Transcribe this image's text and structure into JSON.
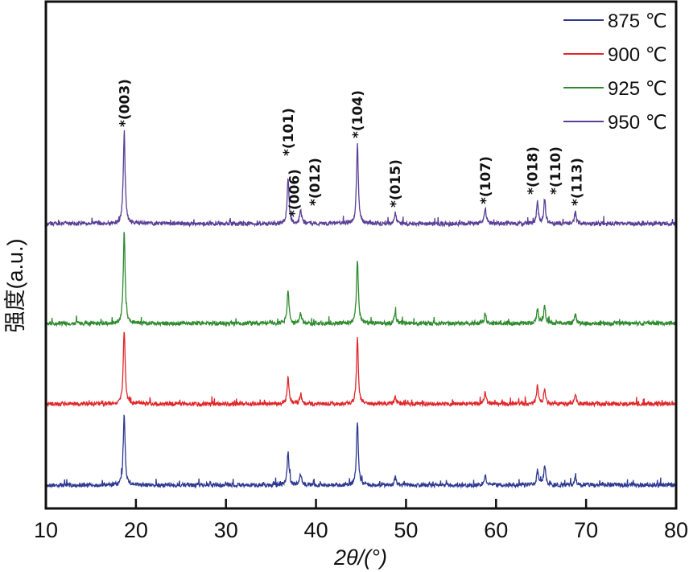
{
  "chart_data": {
    "type": "line",
    "xlabel": "2θ/(°)",
    "ylabel": "强度(a.u.)",
    "xlim": [
      10,
      80
    ],
    "xticks": [
      "10",
      "20",
      "30",
      "40",
      "50",
      "60",
      "70",
      "80"
    ],
    "grid": false,
    "legend_placement": "top-right",
    "series": [
      {
        "name": "875 ℃",
        "color": "#2e3a92",
        "offset": 0,
        "peaks": [
          [
            18.7,
            88
          ],
          [
            36.9,
            42
          ],
          [
            38.3,
            14
          ],
          [
            44.6,
            79
          ],
          [
            48.8,
            10
          ],
          [
            58.8,
            12
          ],
          [
            64.6,
            18
          ],
          [
            65.4,
            26
          ],
          [
            68.8,
            10
          ]
        ]
      },
      {
        "name": "900 ℃",
        "color": "#e0262a",
        "offset": 101,
        "peaks": [
          [
            18.7,
            93
          ],
          [
            36.9,
            34
          ],
          [
            38.3,
            12
          ],
          [
            44.6,
            82
          ],
          [
            48.8,
            8
          ],
          [
            58.8,
            14
          ],
          [
            64.6,
            22
          ],
          [
            65.4,
            18
          ],
          [
            68.8,
            12
          ]
        ]
      },
      {
        "name": "925 ℃",
        "color": "#2e8b2e",
        "offset": 201,
        "peaks": [
          [
            18.7,
            115
          ],
          [
            36.9,
            42
          ],
          [
            38.3,
            12
          ],
          [
            44.6,
            80
          ],
          [
            48.8,
            14
          ],
          [
            58.8,
            12
          ],
          [
            64.6,
            18
          ],
          [
            65.4,
            22
          ],
          [
            68.8,
            12
          ]
        ]
      },
      {
        "name": "950 ℃",
        "color": "#5a3f96",
        "offset": 325,
        "peaks": [
          [
            18.7,
            113
          ],
          [
            36.9,
            56
          ],
          [
            38.3,
            18
          ],
          [
            44.6,
            98
          ],
          [
            48.8,
            14
          ],
          [
            58.8,
            20
          ],
          [
            64.6,
            26
          ],
          [
            65.4,
            30
          ],
          [
            68.8,
            14
          ]
        ]
      }
    ],
    "annotations": [
      {
        "text": "*(003)",
        "x": 18.7
      },
      {
        "text": "*(101)",
        "x": 36.9
      },
      {
        "text": "*(006)",
        "x": 37.6
      },
      {
        "text": "*(012)",
        "x": 38.6
      },
      {
        "text": "*(104)",
        "x": 44.6
      },
      {
        "text": "*(015)",
        "x": 48.8
      },
      {
        "text": "*(107)",
        "x": 58.8
      },
      {
        "text": "*(018)",
        "x": 64.6
      },
      {
        "text": "*(110)",
        "x": 65.5
      },
      {
        "text": "*(113)",
        "x": 68.8
      }
    ]
  }
}
